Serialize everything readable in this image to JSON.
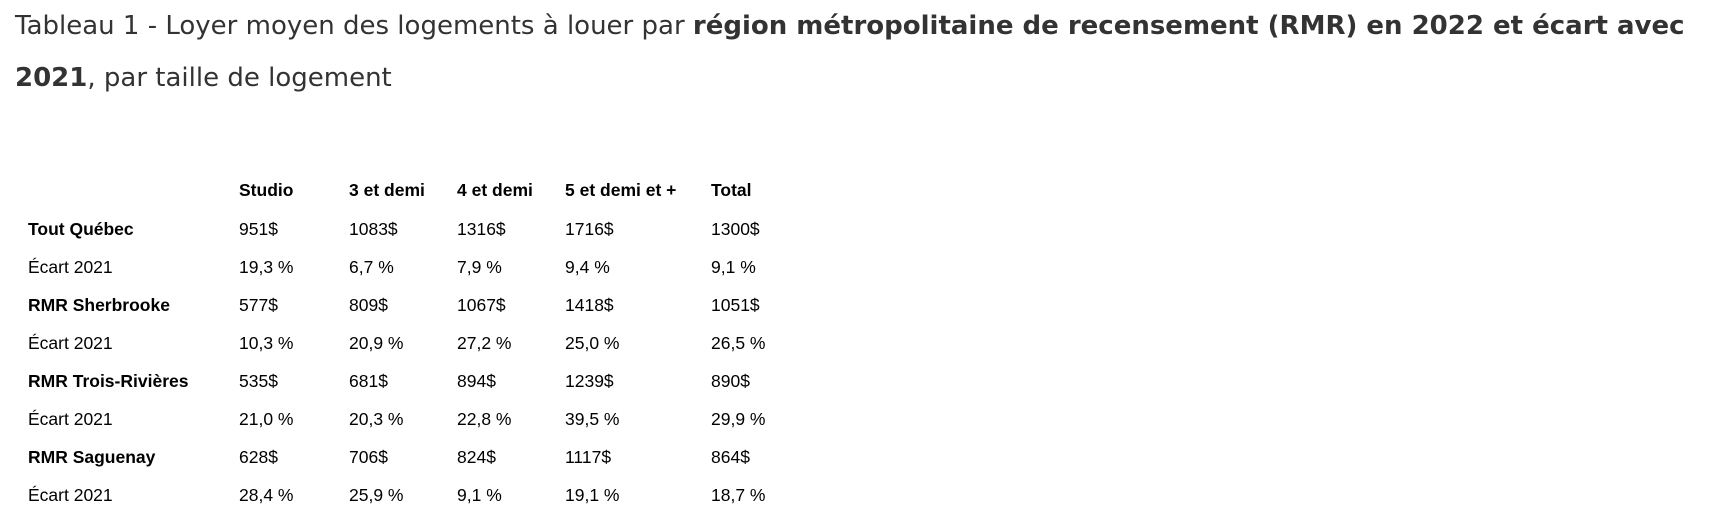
{
  "title": {
    "prefix": "Tableau 1 - Loyer moyen des logements à louer par ",
    "bold1": "région métropolitaine de recensement (RMR) en 2022 et écart avec 2021",
    "suffix": ", par taille de logement"
  },
  "table": {
    "corner": "",
    "headers": [
      "Studio",
      "3 et demi",
      "4 et demi",
      "5 et demi et +",
      "Total"
    ],
    "rows": [
      {
        "label": "Tout Québec",
        "cells": [
          "951$",
          "1083$",
          "1316$",
          "1716$",
          "1300$"
        ]
      },
      {
        "label": "Écart 2021",
        "cells": [
          "19,3 %",
          "6,7 %",
          "7,9 %",
          "9,4 %",
          "9,1 %"
        ]
      },
      {
        "label": "RMR Sherbrooke",
        "cells": [
          "577$",
          "809$",
          "1067$",
          "1418$",
          "1051$"
        ]
      },
      {
        "label": "Écart 2021",
        "cells": [
          "10,3 %",
          "20,9 %",
          "27,2 %",
          "25,0 %",
          "26,5 %"
        ]
      },
      {
        "label": "RMR Trois-Rivières",
        "cells": [
          "535$",
          "681$",
          "894$",
          "1239$",
          "890$"
        ]
      },
      {
        "label": "Écart 2021",
        "cells": [
          "21,0 %",
          "20,3 %",
          "22,8 %",
          "39,5 %",
          "29,9 %"
        ]
      },
      {
        "label": "RMR Saguenay",
        "cells": [
          "628$",
          "706$",
          "824$",
          "1117$",
          "864$"
        ]
      },
      {
        "label": "Écart 2021",
        "cells": [
          "28,4 %",
          "25,9 %",
          "9,1 %",
          "19,1 %",
          "18,7 %"
        ]
      }
    ]
  }
}
